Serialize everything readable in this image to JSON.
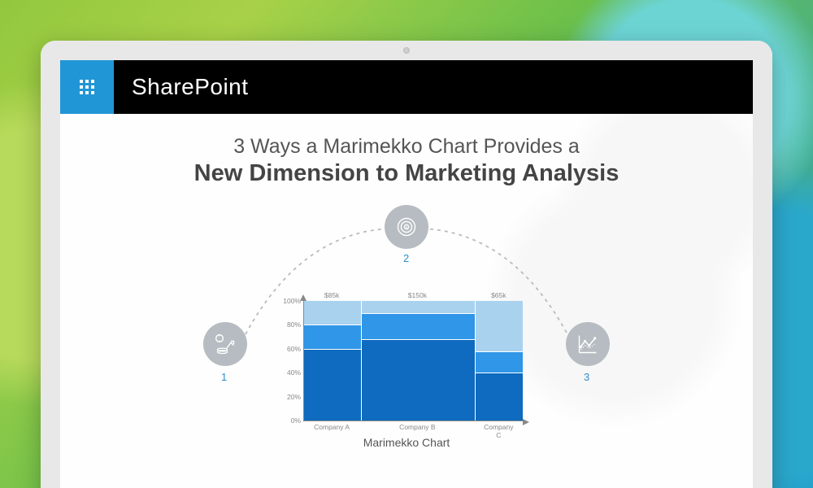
{
  "brand": {
    "name": "SharePoint",
    "waffle_color": "#2196d6",
    "bar_color": "#000000"
  },
  "headline": {
    "light": "3 Ways a Marimekko Chart Provides a",
    "bold": "New Dimension to Marketing Analysis",
    "light_color": "#555555",
    "bold_color": "#444444"
  },
  "nodes": {
    "fill": "#b6bcc1",
    "icon_color": "#ffffff",
    "label_color": "#2f8ec8",
    "n1": {
      "label": "1"
    },
    "n2": {
      "label": "2"
    },
    "n3": {
      "label": "3"
    }
  },
  "arc": {
    "color": "#b6bcc1",
    "dash": "4 5",
    "width": 1.8
  },
  "chart": {
    "caption": "Marimekko Chart",
    "caption_color": "#555555",
    "axis_color": "#888888",
    "grid_color": "#e3e3e3",
    "yticks": [
      "0%",
      "20%",
      "40%",
      "60%",
      "80%",
      "100%"
    ],
    "col_headers": [
      "$85k",
      "$150k",
      "$65k"
    ],
    "xlabels": [
      "Company A",
      "Company B",
      "Company C"
    ],
    "widths": [
      0.26,
      0.52,
      0.22
    ],
    "series_colors": [
      "#0e6bbf",
      "#2f96e8",
      "#a9d2ef"
    ],
    "columns": [
      {
        "segments": [
          0.6,
          0.2,
          0.2
        ]
      },
      {
        "segments": [
          0.68,
          0.22,
          0.1
        ]
      },
      {
        "segments": [
          0.4,
          0.18,
          0.42
        ]
      }
    ]
  }
}
